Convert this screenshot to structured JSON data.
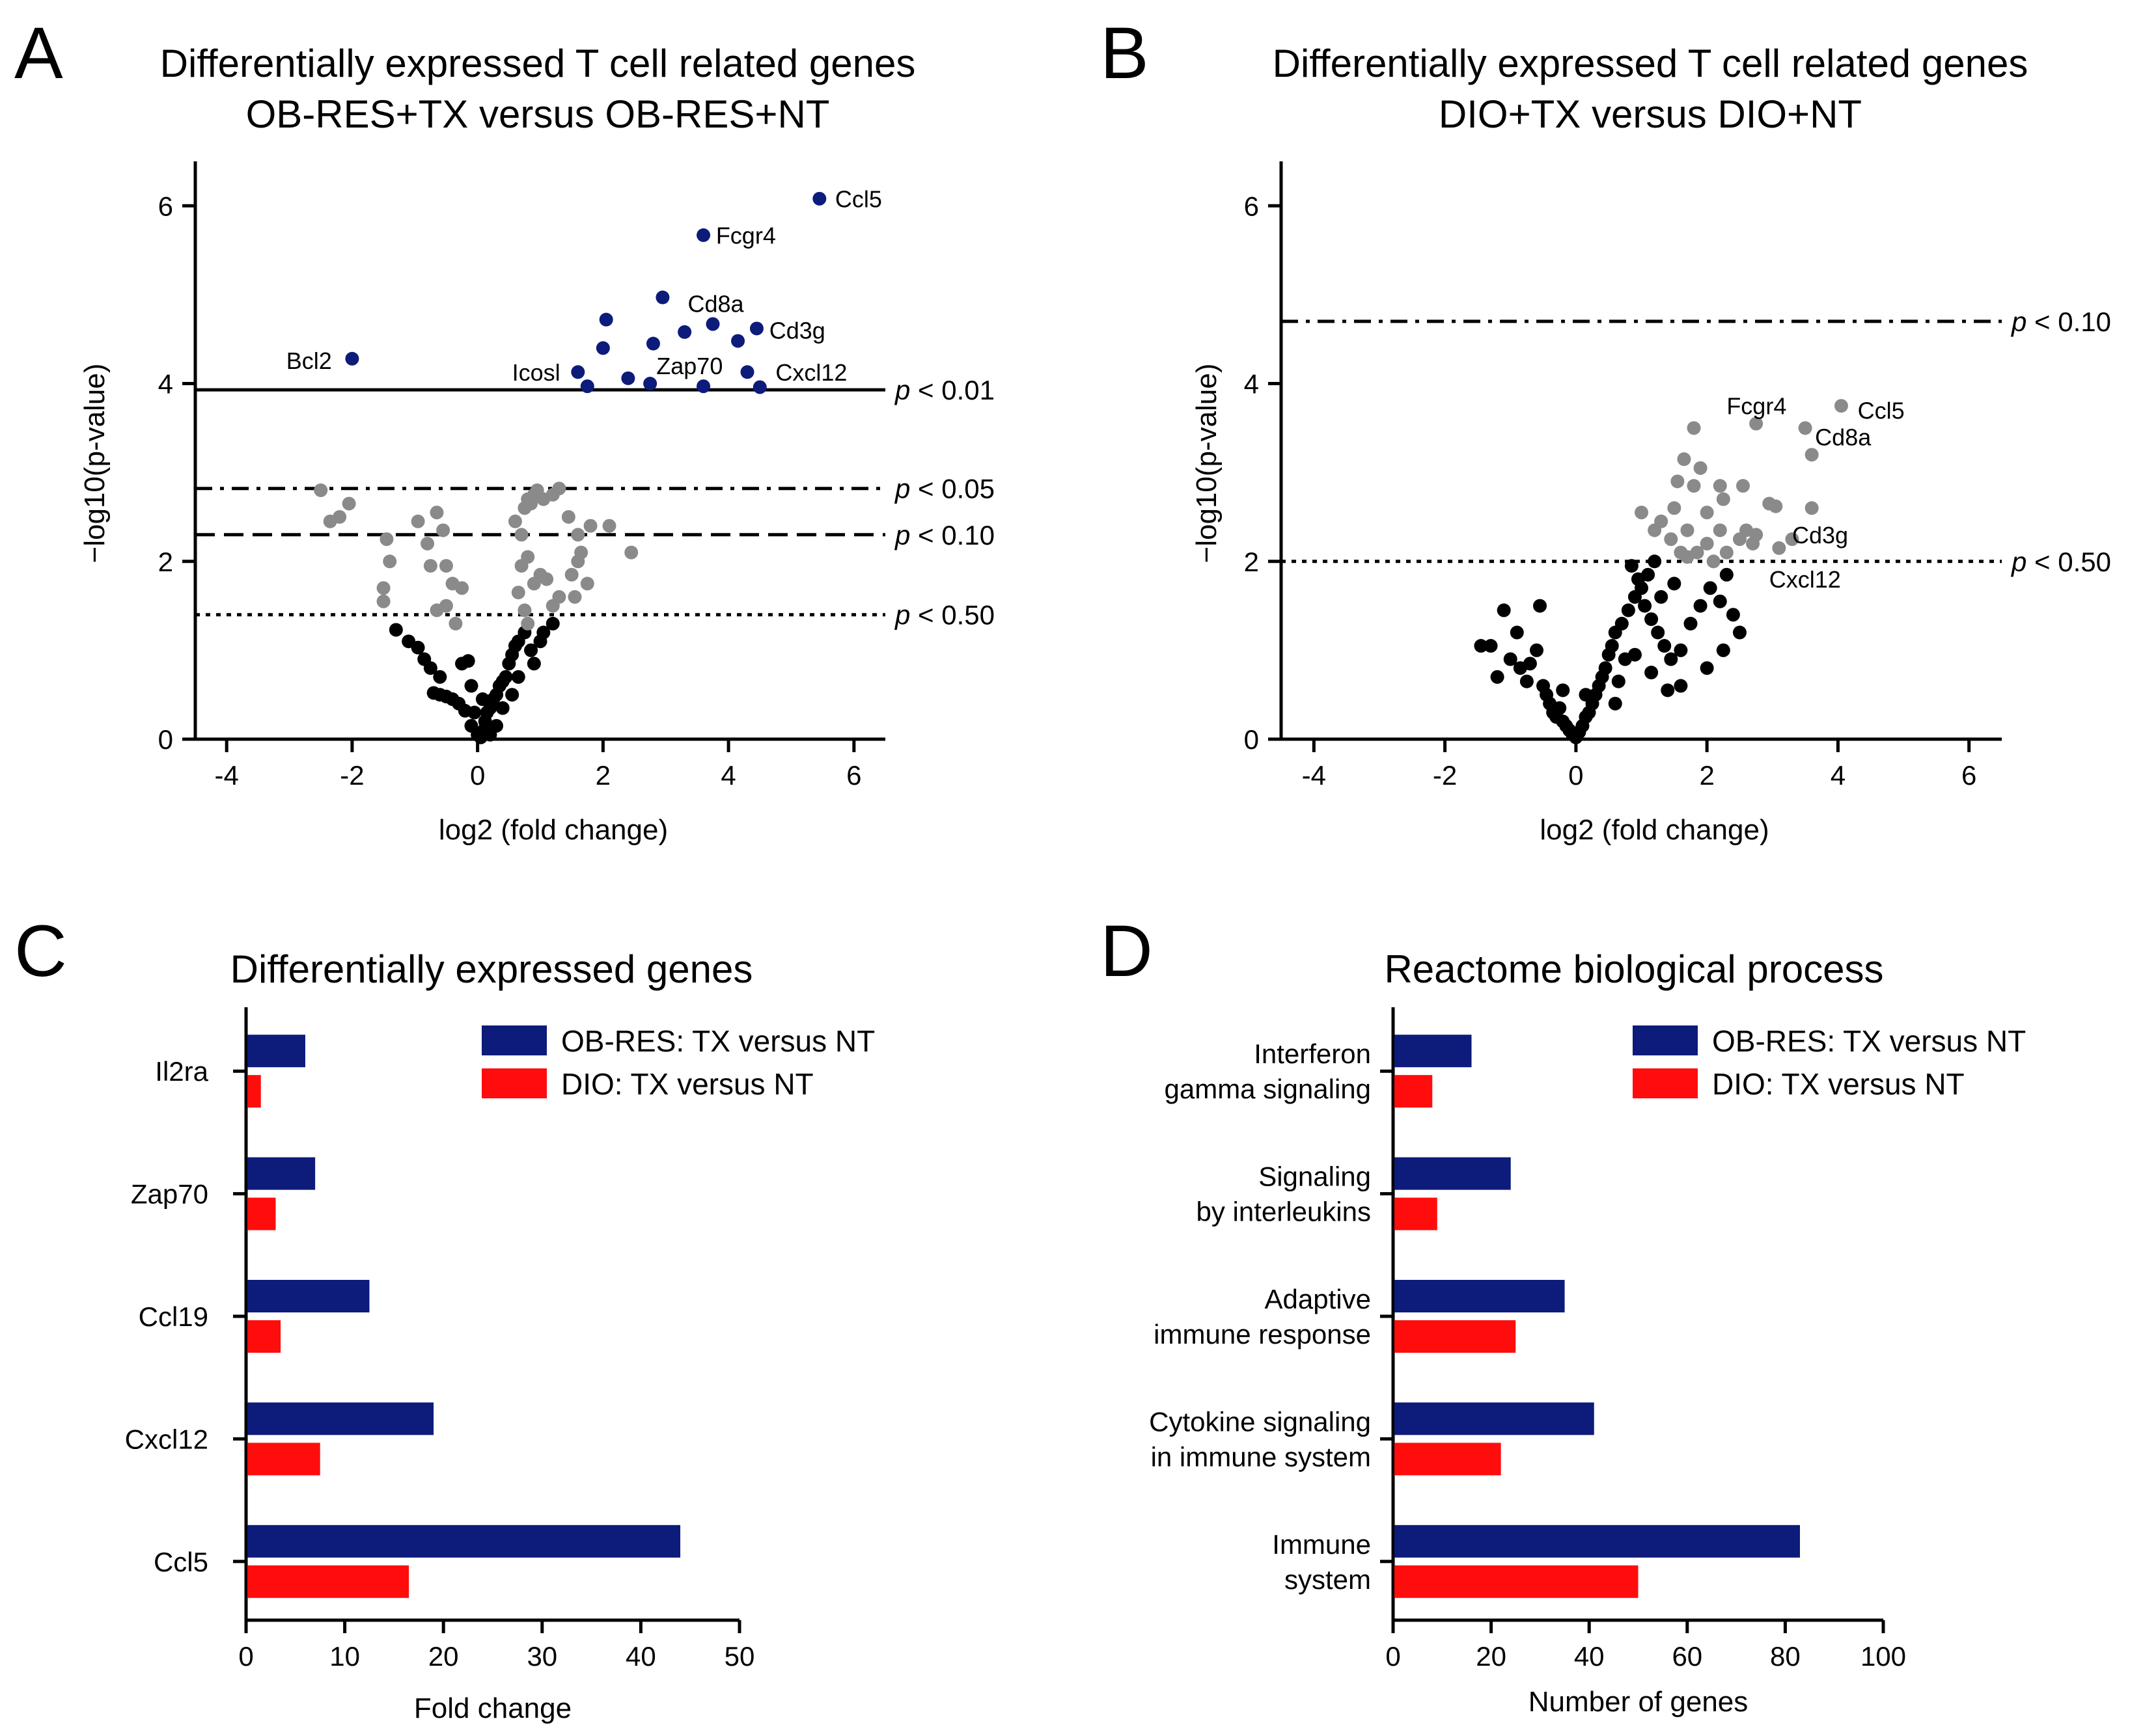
{
  "colors": {
    "significant": "#0d1b7a",
    "gray_point": "#8a8a8a",
    "black_point": "#000000",
    "ob_res_bar": "#0d1b7a",
    "dio_bar": "#ff0d0d"
  },
  "chart_data": [
    {
      "panel": "A",
      "type": "scatter",
      "title_line1": "Differentially expressed T cell related genes",
      "title_line2": "OB-RES+TX versus OB-RES+NT",
      "xlabel": "log2 (fold change)",
      "ylabel": "−log10(p-value)",
      "xlim": [
        -4.5,
        6.5
      ],
      "ylim": [
        0,
        6.5
      ],
      "xticks": [
        -4,
        -2,
        0,
        2,
        4,
        6
      ],
      "xtick_labels": [
        "-4",
        "-2",
        "0",
        "2",
        "4",
        "6"
      ],
      "yticks": [
        0,
        2,
        4,
        6
      ],
      "ytick_labels": [
        "0",
        "2",
        "4",
        "6"
      ],
      "thresholds": [
        {
          "y": 3.93,
          "style": "solid",
          "label_p": "p",
          "label_rest": " < 0.01"
        },
        {
          "y": 2.82,
          "style": "dashdot",
          "label_p": "p",
          "label_rest": " < 0.05"
        },
        {
          "y": 2.3,
          "style": "dashed",
          "label_p": "p",
          "label_rest": " < 0.10"
        },
        {
          "y": 1.4,
          "style": "dotted",
          "label_p": "p",
          "label_rest": " < 0.50"
        }
      ],
      "significant_points": [
        [
          -2.0,
          4.28
        ],
        [
          1.6,
          4.13
        ],
        [
          1.75,
          3.97
        ],
        [
          2.05,
          4.72
        ],
        [
          2.0,
          4.4
        ],
        [
          2.4,
          4.06
        ],
        [
          2.75,
          4.0
        ],
        [
          2.8,
          4.45
        ],
        [
          2.95,
          4.97
        ],
        [
          3.3,
          4.58
        ],
        [
          3.6,
          5.67
        ],
        [
          3.6,
          3.97
        ],
        [
          3.75,
          4.67
        ],
        [
          4.15,
          4.48
        ],
        [
          4.3,
          4.13
        ],
        [
          4.45,
          4.62
        ],
        [
          4.5,
          3.96
        ],
        [
          5.45,
          6.08
        ]
      ],
      "gene_labels": [
        {
          "text": "Ccl5",
          "x": 5.7,
          "y": 6.08
        },
        {
          "text": "Fcgr4",
          "x": 3.8,
          "y": 5.67
        },
        {
          "text": "Cd8a",
          "x": 3.35,
          "y": 4.9
        },
        {
          "text": "Cd3g",
          "x": 4.65,
          "y": 4.6
        },
        {
          "text": "Bcl2",
          "x": -3.05,
          "y": 4.26
        },
        {
          "text": "Icosl",
          "x": 0.55,
          "y": 4.13
        },
        {
          "text": "Zap70",
          "x": 2.85,
          "y": 4.2
        },
        {
          "text": "Cxcl12",
          "x": 4.75,
          "y": 4.13
        }
      ],
      "gray_points": [
        [
          -2.5,
          2.8
        ],
        [
          -2.35,
          2.45
        ],
        [
          -2.2,
          2.5
        ],
        [
          -2.05,
          2.65
        ],
        [
          -1.45,
          2.25
        ],
        [
          -1.4,
          2.0
        ],
        [
          -1.5,
          1.7
        ],
        [
          -1.5,
          1.55
        ],
        [
          -0.95,
          2.45
        ],
        [
          -0.8,
          2.2
        ],
        [
          -0.75,
          1.95
        ],
        [
          -0.65,
          2.55
        ],
        [
          -0.55,
          2.35
        ],
        [
          -0.5,
          1.95
        ],
        [
          -0.4,
          1.75
        ],
        [
          -0.35,
          1.3
        ],
        [
          -0.25,
          1.7
        ],
        [
          -0.65,
          1.45
        ],
        [
          -0.5,
          1.5
        ],
        [
          0.6,
          2.45
        ],
        [
          0.7,
          2.3
        ],
        [
          0.75,
          2.6
        ],
        [
          0.85,
          2.65
        ],
        [
          0.9,
          2.75
        ],
        [
          0.8,
          2.7
        ],
        [
          0.95,
          2.8
        ],
        [
          1.05,
          2.7
        ],
        [
          1.2,
          2.75
        ],
        [
          1.3,
          2.82
        ],
        [
          1.45,
          2.5
        ],
        [
          1.6,
          2.3
        ],
        [
          1.65,
          2.1
        ],
        [
          1.8,
          2.4
        ],
        [
          2.1,
          2.4
        ],
        [
          2.45,
          2.1
        ],
        [
          0.7,
          1.95
        ],
        [
          0.8,
          2.05
        ],
        [
          0.9,
          1.75
        ],
        [
          1.0,
          1.85
        ],
        [
          1.1,
          1.8
        ],
        [
          1.2,
          1.5
        ],
        [
          1.3,
          1.6
        ],
        [
          0.65,
          1.65
        ],
        [
          0.75,
          1.45
        ],
        [
          0.8,
          1.3
        ],
        [
          1.5,
          1.85
        ],
        [
          1.6,
          2.0
        ],
        [
          1.75,
          1.75
        ],
        [
          1.55,
          1.6
        ]
      ],
      "black_points": [
        [
          -1.3,
          1.23
        ],
        [
          -1.1,
          1.1
        ],
        [
          -0.95,
          1.03
        ],
        [
          -0.85,
          0.9
        ],
        [
          -0.75,
          0.8
        ],
        [
          -0.6,
          0.7
        ],
        [
          -0.7,
          0.52
        ],
        [
          -0.6,
          0.5
        ],
        [
          -0.5,
          0.48
        ],
        [
          -0.4,
          0.45
        ],
        [
          -0.3,
          0.4
        ],
        [
          -0.2,
          0.32
        ],
        [
          -0.25,
          0.85
        ],
        [
          -0.15,
          0.88
        ],
        [
          -0.1,
          0.6
        ],
        [
          -0.1,
          0.15
        ],
        [
          0.0,
          0.05
        ],
        [
          0.05,
          0.02
        ],
        [
          0.1,
          0.1
        ],
        [
          0.12,
          0.2
        ],
        [
          0.15,
          0.3
        ],
        [
          0.2,
          0.35
        ],
        [
          0.25,
          0.45
        ],
        [
          0.3,
          0.5
        ],
        [
          0.35,
          0.6
        ],
        [
          0.4,
          0.65
        ],
        [
          0.45,
          0.7
        ],
        [
          0.5,
          0.85
        ],
        [
          0.55,
          0.95
        ],
        [
          0.6,
          1.05
        ],
        [
          0.65,
          1.1
        ],
        [
          0.75,
          1.2
        ],
        [
          0.85,
          1.0
        ],
        [
          0.9,
          0.85
        ],
        [
          1.0,
          1.1
        ],
        [
          1.05,
          1.2
        ],
        [
          1.2,
          1.3
        ],
        [
          0.4,
          0.35
        ],
        [
          0.3,
          0.15
        ],
        [
          0.2,
          0.05
        ],
        [
          0.55,
          0.5
        ],
        [
          0.65,
          0.7
        ],
        [
          -0.05,
          0.3
        ],
        [
          0.08,
          0.45
        ]
      ]
    },
    {
      "panel": "B",
      "type": "scatter",
      "title_line1": "Differentially expressed T cell related genes",
      "title_line2": "DIO+TX versus DIO+NT",
      "xlabel": "log2 (fold change)",
      "ylabel": "−log10(p-value)",
      "xlim": [
        -4.5,
        6.5
      ],
      "ylim": [
        0,
        6.5
      ],
      "xticks": [
        -4,
        -2,
        0,
        2,
        4,
        6
      ],
      "xtick_labels": [
        "-4",
        "-2",
        "0",
        "2",
        "4",
        "6"
      ],
      "yticks": [
        0,
        2,
        4,
        6
      ],
      "ytick_labels": [
        "0",
        "2",
        "4",
        "6"
      ],
      "thresholds": [
        {
          "y": 4.7,
          "style": "dashdot",
          "label_p": "p",
          "label_rest": " < 0.10"
        },
        {
          "y": 2.0,
          "style": "dotted",
          "label_p": "p",
          "label_rest": " < 0.50"
        }
      ],
      "gene_labels": [
        {
          "text": "Fcgr4",
          "x": 2.3,
          "y": 3.75
        },
        {
          "text": "Ccl5",
          "x": 4.3,
          "y": 3.7
        },
        {
          "text": "Cd8a",
          "x": 3.65,
          "y": 3.4
        },
        {
          "text": "Cd3g",
          "x": 3.3,
          "y": 2.3
        },
        {
          "text": "Cxcl12",
          "x": 2.95,
          "y": 1.8
        }
      ],
      "gray_points": [
        [
          1.65,
          3.15
        ],
        [
          1.8,
          3.5
        ],
        [
          2.75,
          3.55
        ],
        [
          3.5,
          3.5
        ],
        [
          4.05,
          3.75
        ],
        [
          3.6,
          3.2
        ],
        [
          1.9,
          3.05
        ],
        [
          1.55,
          2.9
        ],
        [
          1.8,
          2.85
        ],
        [
          2.2,
          2.85
        ],
        [
          2.55,
          2.85
        ],
        [
          1.0,
          2.55
        ],
        [
          1.2,
          2.35
        ],
        [
          1.3,
          2.45
        ],
        [
          1.5,
          2.6
        ],
        [
          1.7,
          2.35
        ],
        [
          2.0,
          2.55
        ],
        [
          2.25,
          2.7
        ],
        [
          2.6,
          2.35
        ],
        [
          2.75,
          2.3
        ],
        [
          2.95,
          2.65
        ],
        [
          3.05,
          2.62
        ],
        [
          3.1,
          2.15
        ],
        [
          3.3,
          2.25
        ],
        [
          3.6,
          2.6
        ],
        [
          2.5,
          2.25
        ],
        [
          2.7,
          2.2
        ],
        [
          2.2,
          2.35
        ],
        [
          2.3,
          2.1
        ],
        [
          1.6,
          2.1
        ],
        [
          1.85,
          2.1
        ],
        [
          2.0,
          2.2
        ],
        [
          2.1,
          2.0
        ],
        [
          1.45,
          2.25
        ],
        [
          1.7,
          2.05
        ]
      ],
      "black_points": [
        [
          -1.45,
          1.05
        ],
        [
          -1.3,
          1.05
        ],
        [
          -1.1,
          1.45
        ],
        [
          -1.0,
          0.9
        ],
        [
          -0.85,
          0.8
        ],
        [
          -0.7,
          0.85
        ],
        [
          -0.6,
          1.0
        ],
        [
          -0.55,
          1.5
        ],
        [
          -0.5,
          0.6
        ],
        [
          -0.45,
          0.5
        ],
        [
          -0.4,
          0.4
        ],
        [
          -0.35,
          0.3
        ],
        [
          -0.3,
          0.25
        ],
        [
          -0.25,
          0.35
        ],
        [
          -0.2,
          0.2
        ],
        [
          -0.15,
          0.15
        ],
        [
          -0.1,
          0.1
        ],
        [
          -0.05,
          0.05
        ],
        [
          0.0,
          0.02
        ],
        [
          0.05,
          0.08
        ],
        [
          0.1,
          0.15
        ],
        [
          0.15,
          0.25
        ],
        [
          0.2,
          0.3
        ],
        [
          0.25,
          0.4
        ],
        [
          0.3,
          0.5
        ],
        [
          0.35,
          0.6
        ],
        [
          0.4,
          0.7
        ],
        [
          0.45,
          0.8
        ],
        [
          0.5,
          0.95
        ],
        [
          0.55,
          1.05
        ],
        [
          0.6,
          1.2
        ],
        [
          0.7,
          1.3
        ],
        [
          0.8,
          1.45
        ],
        [
          0.9,
          1.6
        ],
        [
          1.0,
          1.7
        ],
        [
          1.1,
          1.85
        ],
        [
          1.2,
          2.0
        ],
        [
          0.85,
          1.95
        ],
        [
          0.95,
          1.8
        ],
        [
          1.05,
          1.5
        ],
        [
          1.15,
          1.35
        ],
        [
          1.25,
          1.2
        ],
        [
          1.35,
          1.05
        ],
        [
          1.45,
          0.9
        ],
        [
          1.6,
          1.0
        ],
        [
          1.75,
          1.3
        ],
        [
          1.9,
          1.5
        ],
        [
          2.05,
          1.7
        ],
        [
          2.2,
          1.55
        ],
        [
          2.4,
          1.4
        ],
        [
          2.5,
          1.2
        ],
        [
          2.25,
          1.0
        ],
        [
          2.0,
          0.8
        ],
        [
          1.6,
          0.6
        ],
        [
          1.4,
          0.55
        ],
        [
          0.75,
          0.9
        ],
        [
          0.65,
          0.65
        ],
        [
          -1.2,
          0.7
        ],
        [
          -0.9,
          1.2
        ],
        [
          -0.75,
          0.65
        ],
        [
          2.3,
          1.85
        ],
        [
          1.5,
          1.75
        ],
        [
          1.3,
          1.6
        ],
        [
          0.15,
          0.5
        ],
        [
          -0.2,
          0.55
        ],
        [
          0.6,
          0.4
        ],
        [
          0.9,
          0.95
        ],
        [
          1.15,
          0.75
        ]
      ]
    },
    {
      "panel": "C",
      "type": "bar",
      "orientation": "horizontal",
      "title": "Differentially expressed genes",
      "xlabel": "Fold change",
      "categories": [
        "Il2ra",
        "Zap70",
        "Ccl19",
        "Cxcl12",
        "Ccl5"
      ],
      "series": [
        {
          "name": "OB-RES: TX versus NT",
          "values": [
            6,
            7,
            12.5,
            19,
            44
          ]
        },
        {
          "name": "DIO: TX versus NT",
          "values": [
            1.5,
            3,
            3.5,
            7.5,
            16.5
          ]
        }
      ],
      "xlim": [
        0,
        50
      ],
      "xticks": [
        0,
        10,
        20,
        30,
        40,
        50
      ],
      "xtick_labels": [
        "0",
        "10",
        "20",
        "30",
        "40",
        "50"
      ],
      "legend": "top-right"
    },
    {
      "panel": "D",
      "type": "bar",
      "orientation": "horizontal",
      "title": "Reactome biological process",
      "xlabel": "Number of genes",
      "categories": [
        [
          "Interferon",
          "gamma signaling"
        ],
        [
          "Signaling",
          "by interleukins"
        ],
        [
          "Adaptive",
          "immune response"
        ],
        [
          "Cytokine signaling",
          "in immune system"
        ],
        [
          "Immune",
          "system"
        ]
      ],
      "series": [
        {
          "name": "OB-RES: TX versus NT",
          "values": [
            16,
            24,
            35,
            41,
            83
          ]
        },
        {
          "name": "DIO: TX versus NT",
          "values": [
            8,
            9,
            25,
            22,
            50
          ]
        }
      ],
      "xlim": [
        0,
        100
      ],
      "xticks": [
        0,
        20,
        40,
        60,
        80,
        100
      ],
      "xtick_labels": [
        "0",
        "20",
        "40",
        "60",
        "80",
        "100"
      ],
      "legend": "top-right"
    }
  ]
}
